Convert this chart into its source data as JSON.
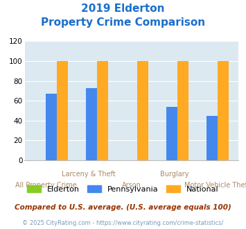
{
  "title_line1": "2019 Elderton",
  "title_line2": "Property Crime Comparison",
  "title_color": "#1a6fcc",
  "categories": [
    "All Property Crime",
    "Larceny & Theft",
    "Arson",
    "Burglary",
    "Motor Vehicle Theft"
  ],
  "cat_labels_top": [
    "",
    "Larceny & Theft",
    "",
    "Burglary",
    ""
  ],
  "cat_labels_bot": [
    "All Property Crime",
    "",
    "Arson",
    "",
    "Motor Vehicle Theft"
  ],
  "elderton": [
    0,
    0,
    0,
    0,
    0
  ],
  "pennsylvania": [
    67,
    73,
    0,
    54,
    45
  ],
  "national": [
    100,
    100,
    100,
    100,
    100
  ],
  "colors": {
    "elderton": "#88cc22",
    "pennsylvania": "#4488ee",
    "national": "#ffaa22"
  },
  "ylim": [
    0,
    120
  ],
  "yticks": [
    0,
    20,
    40,
    60,
    80,
    100,
    120
  ],
  "legend_labels": [
    "Elderton",
    "Pennsylvania",
    "National"
  ],
  "footnote1": "Compared to U.S. average. (U.S. average equals 100)",
  "footnote2": "© 2025 CityRating.com - https://www.cityrating.com/crime-statistics/",
  "bg_color": "#dce9f0",
  "fig_bg": "#ffffff"
}
